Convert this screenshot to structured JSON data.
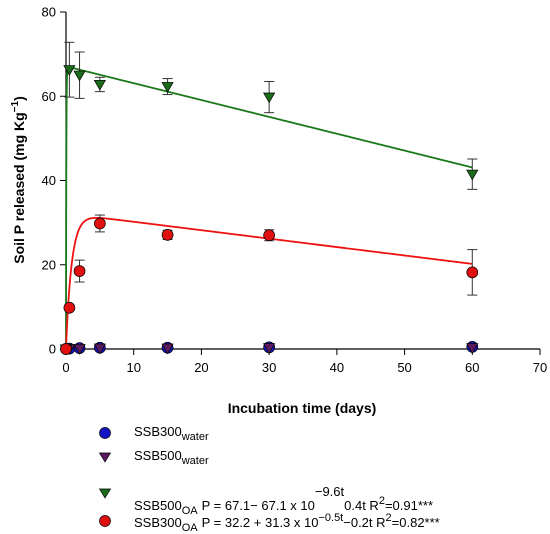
{
  "chart_data": {
    "type": "scatter",
    "title": "",
    "xlabel": "Incubation time (days)",
    "ylabel_main": "Soil P released (mg Kg",
    "ylabel_sup": "−1",
    "ylabel_close": ")",
    "xlim": [
      0,
      70
    ],
    "ylim": [
      0,
      80
    ],
    "x_ticks": [
      0,
      10,
      20,
      30,
      40,
      50,
      60,
      70
    ],
    "y_ticks": [
      0,
      20,
      40,
      60,
      80
    ],
    "grid": false,
    "legend_position": "bottom",
    "series": [
      {
        "key": "ssb300_water",
        "color": "#1515c8",
        "marker": "circle",
        "points": [
          {
            "x": 0,
            "y": 0
          },
          {
            "x": 0.5,
            "y": 0.1
          },
          {
            "x": 2,
            "y": 0.2
          },
          {
            "x": 5,
            "y": 0.3
          },
          {
            "x": 15,
            "y": 0.3
          },
          {
            "x": 30,
            "y": 0.4
          },
          {
            "x": 60,
            "y": 0.5
          }
        ]
      },
      {
        "key": "ssb500_water",
        "color": "#5b1a5b",
        "marker": "triangle-down",
        "points": [
          {
            "x": 0,
            "y": 0
          },
          {
            "x": 0.5,
            "y": 0.1
          },
          {
            "x": 2,
            "y": 0.1
          },
          {
            "x": 5,
            "y": 0.2
          },
          {
            "x": 15,
            "y": 0.2
          },
          {
            "x": 30,
            "y": 0.3
          },
          {
            "x": 60,
            "y": 0.3
          }
        ]
      },
      {
        "key": "ssb500_oa",
        "color": "#1a6b1a",
        "line_color": "#1a7a1a",
        "marker": "triangle-down",
        "fit": {
          "model": "ssb500",
          "a": 67.1,
          "b": 67.1,
          "k": 9.6,
          "d": 0.4
        },
        "points": [
          {
            "x": 0,
            "y": 0,
            "err": 0
          },
          {
            "x": 0.5,
            "y": 66.3,
            "err": 6.5
          },
          {
            "x": 2,
            "y": 65.0,
            "err": 5.5
          },
          {
            "x": 5,
            "y": 62.8,
            "err": 1.7
          },
          {
            "x": 15,
            "y": 62.3,
            "err": 1.9
          },
          {
            "x": 30,
            "y": 59.8,
            "err": 3.7
          },
          {
            "x": 60,
            "y": 41.5,
            "err": 3.6
          }
        ]
      },
      {
        "key": "ssb300_oa",
        "color": "#e01010",
        "line_color": "#ee1111",
        "marker": "circle",
        "fit": {
          "model": "ssb300",
          "a": 32.2,
          "b": 31.3,
          "k": 0.5,
          "d": 0.2
        },
        "points": [
          {
            "x": 0,
            "y": 0,
            "err": 0
          },
          {
            "x": 0.5,
            "y": 9.8,
            "err": 0.6
          },
          {
            "x": 2,
            "y": 18.5,
            "err": 2.6
          },
          {
            "x": 5,
            "y": 29.8,
            "err": 2.0
          },
          {
            "x": 15,
            "y": 27.1,
            "err": 1.1
          },
          {
            "x": 30,
            "y": 27.0,
            "err": 1.3
          },
          {
            "x": 60,
            "y": 18.2,
            "err": 5.4
          }
        ]
      }
    ]
  },
  "legend": {
    "ssb300_water": {
      "base": "SSB300",
      "sub": "water"
    },
    "ssb500_water": {
      "base": "SSB500",
      "sub": "water"
    },
    "ssb500_oa": {
      "base": "SSB500",
      "sub": "OA",
      "eq_a": "P = 67.1− 67.1 x 10",
      "eq_sup": "−9.6t",
      "eq_b": "0.4t R",
      "r2_sup": "2",
      "r2_val": "=0.91***"
    },
    "ssb300_oa": {
      "base": "SSB300",
      "sub": "OA",
      "eq_a": "P = 32.2 + 31.3 x 10",
      "eq_sup": "−0.5t",
      "eq_b": "−0.2t R",
      "r2_sup": "2",
      "r2_val": "=0.82***"
    }
  }
}
